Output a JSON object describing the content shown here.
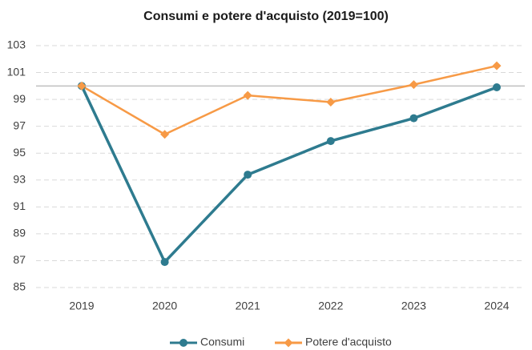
{
  "chart_data": {
    "type": "line",
    "title": "Consumi e potere d'acquisto (2019=100)",
    "categories": [
      "2019",
      "2020",
      "2021",
      "2022",
      "2023",
      "2024"
    ],
    "series": [
      {
        "name": "Consumi",
        "color": "#2e7b8f",
        "marker": "circle",
        "values": [
          100,
          86.9,
          93.4,
          95.9,
          97.6,
          99.9
        ]
      },
      {
        "name": "Potere d'acquisto",
        "color": "#f79a46",
        "marker": "diamond",
        "values": [
          100,
          96.4,
          99.3,
          98.8,
          100.1,
          101.5
        ]
      }
    ],
    "ylim": [
      85,
      103
    ],
    "yticks": [
      85,
      87,
      89,
      91,
      93,
      95,
      97,
      99,
      101,
      103
    ],
    "reference_line": 100,
    "grid": true,
    "legend": "bottom"
  }
}
